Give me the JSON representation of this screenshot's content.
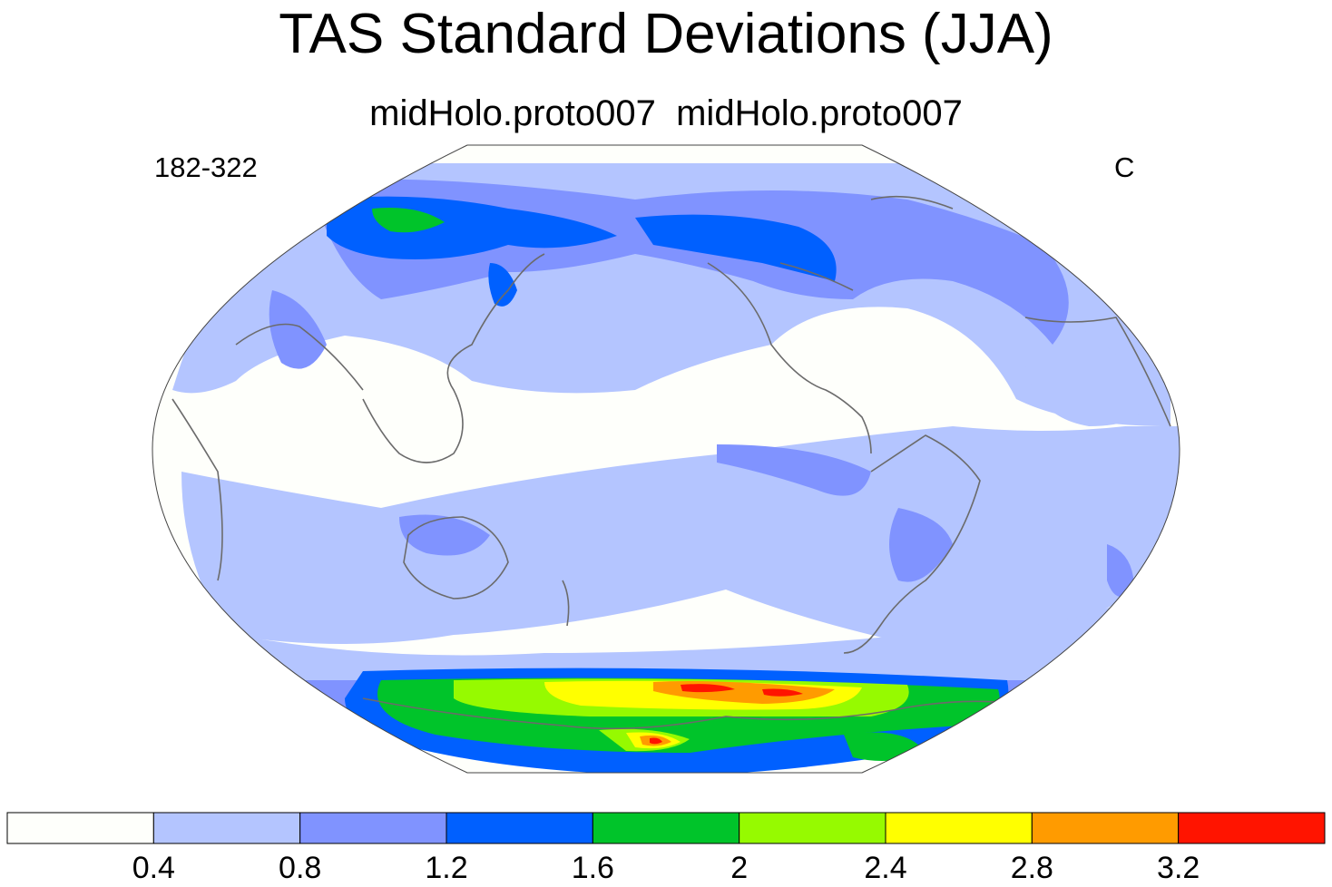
{
  "figure": {
    "title": "TAS Standard Deviations (JJA)",
    "subtitle": "midHolo.proto007  midHolo.proto007",
    "left_label": "182-322",
    "right_label": "C"
  },
  "map": {
    "projection": "robinson",
    "central_longitude": 180,
    "coastline_color": "#6b6b6b"
  },
  "colorbar": {
    "levels": [
      "0.4",
      "0.8",
      "1.2",
      "1.6",
      "2",
      "2.4",
      "2.8",
      "3.2"
    ],
    "colors": [
      "#fefffb",
      "#b4c5ff",
      "#8093ff",
      "#0060ff",
      "#00c42a",
      "#96fa00",
      "#ffff00",
      "#ff9b00",
      "#ff1400"
    ]
  }
}
